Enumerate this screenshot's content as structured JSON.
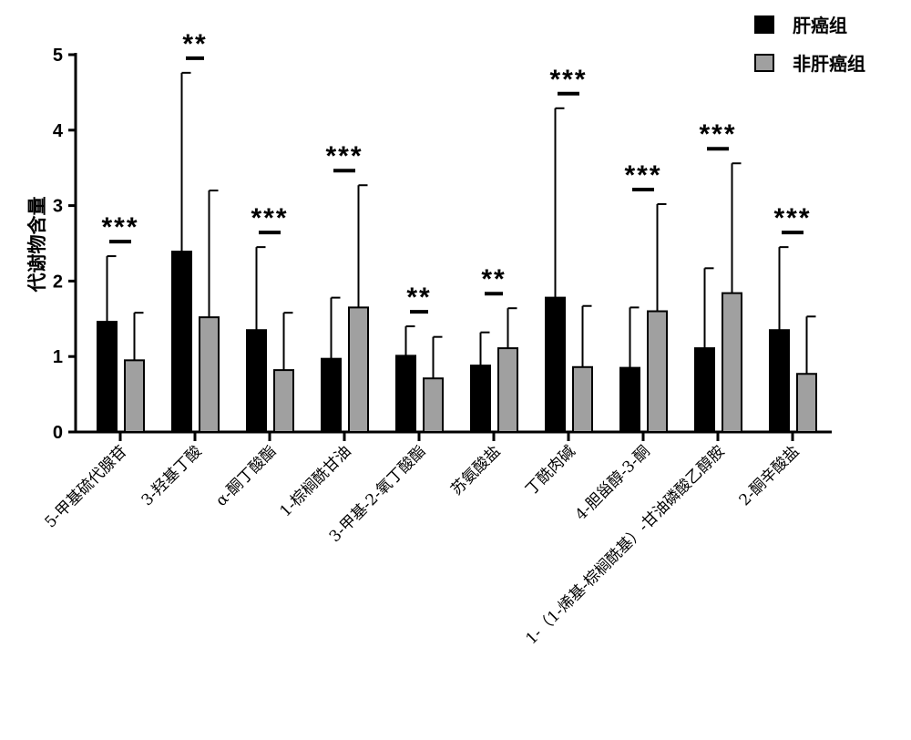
{
  "chart_data": {
    "type": "bar",
    "title": "",
    "xlabel": "",
    "ylabel": "代谢物含量",
    "ylim": [
      0,
      5
    ],
    "yticks": [
      "0",
      "1",
      "2",
      "3",
      "4",
      "5"
    ],
    "legend_position": "top-right",
    "categories": [
      "5-甲基硫代腺苷",
      "3-羟基丁酸",
      "α-酮丁酸酯",
      "1-棕榈酰甘油",
      "3-甲基-2-氧丁酸酯",
      "苏氨酸盐",
      "丁酰肉碱",
      "4-胆甾醇-3-酮",
      "1-（1-烯基-棕榈酰基）-甘油磷酸乙醇胺",
      "2-酮辛酸盐"
    ],
    "series": [
      {
        "name": "肝癌组",
        "color": "#000000",
        "values": [
          1.46,
          2.39,
          1.35,
          0.97,
          1.01,
          0.88,
          1.78,
          0.85,
          1.11,
          1.35
        ],
        "error_upper": [
          2.33,
          4.76,
          2.45,
          1.78,
          1.4,
          1.32,
          4.29,
          1.65,
          2.17,
          2.45
        ]
      },
      {
        "name": "非肝癌组",
        "color": "#a0a0a0",
        "values": [
          0.95,
          1.52,
          0.82,
          1.65,
          0.71,
          1.11,
          0.86,
          1.6,
          1.84,
          0.77
        ],
        "error_upper": [
          1.58,
          3.2,
          1.58,
          3.27,
          1.26,
          1.64,
          1.67,
          3.02,
          3.56,
          1.53
        ]
      }
    ],
    "significance": [
      "***",
      "**",
      "***",
      "***",
      "**",
      "**",
      "***",
      "***",
      "***",
      "***"
    ]
  }
}
